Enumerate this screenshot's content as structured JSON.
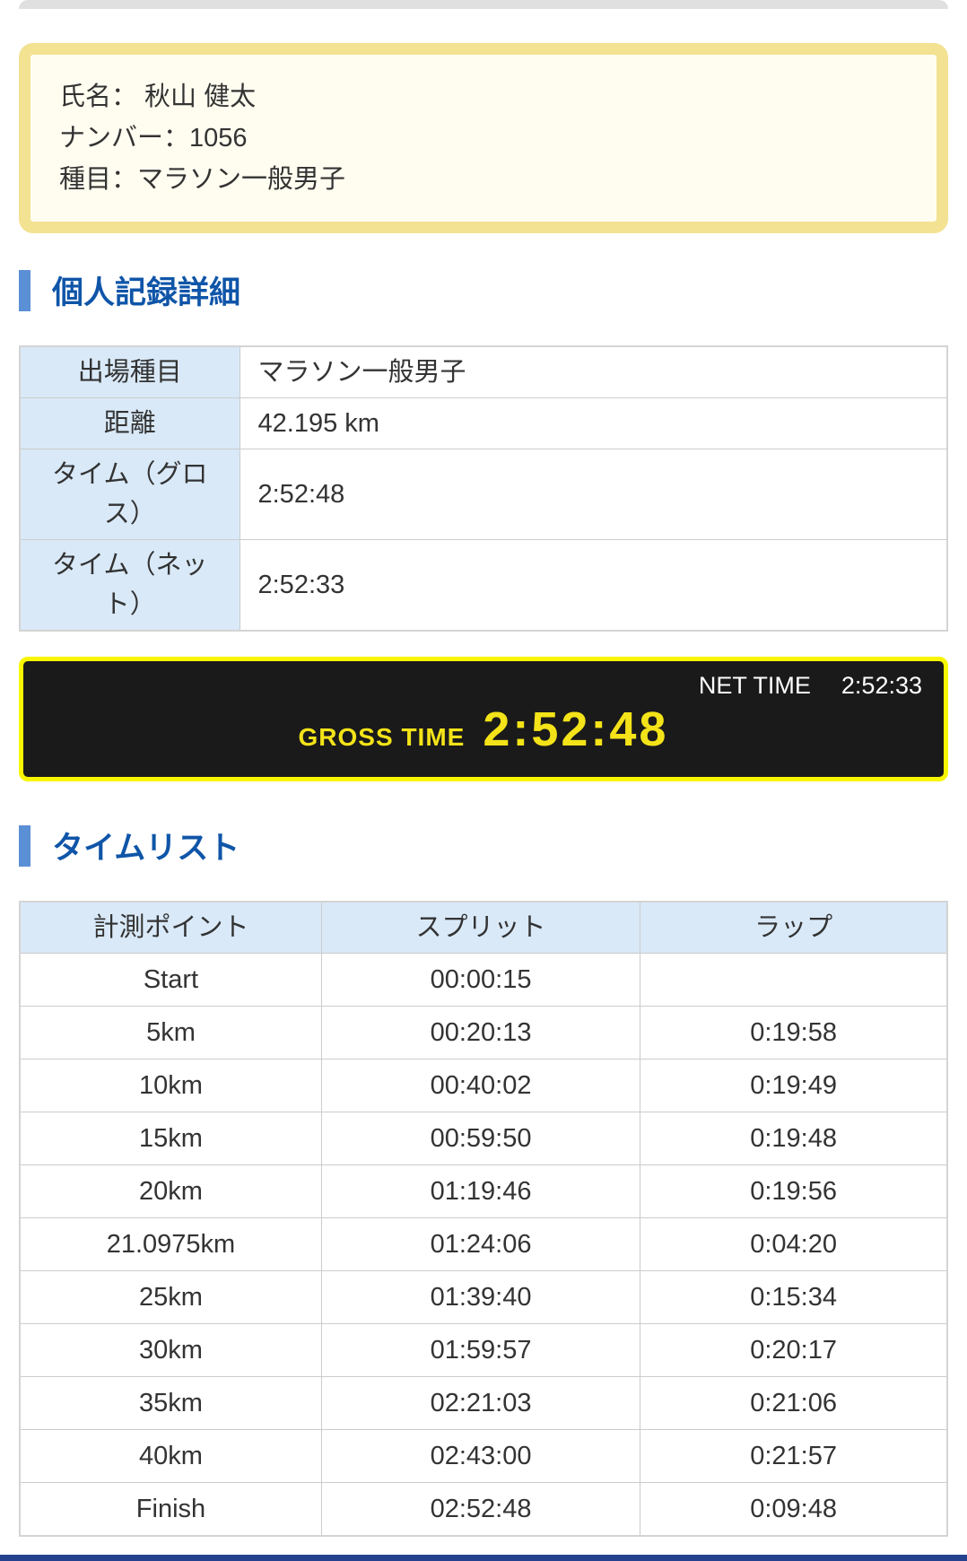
{
  "info": {
    "name_line": "氏名： 秋山 健太",
    "number_line": "ナンバー：1056",
    "event_line": "種目：マラソン一般男子"
  },
  "sections": {
    "record_detail": "個人記録詳細",
    "time_list": "タイムリスト"
  },
  "record_table": {
    "rows": [
      {
        "label": "出場種目",
        "value": "マラソン一般男子"
      },
      {
        "label": "距離",
        "value": "42.195 km"
      },
      {
        "label": "タイム（グロス）",
        "value": "2:52:48"
      },
      {
        "label": "タイム（ネット）",
        "value": "2:52:33"
      }
    ]
  },
  "time_banner": {
    "net_label": "NET TIME",
    "net_value": "2:52:33",
    "gross_label": "GROSS TIME",
    "gross_value": "2:52:48"
  },
  "time_table": {
    "headers": [
      "計測ポイント",
      "スプリット",
      "ラップ"
    ],
    "rows": [
      {
        "point": "Start",
        "split": "00:00:15",
        "lap": ""
      },
      {
        "point": "5km",
        "split": "00:20:13",
        "lap": "0:19:58"
      },
      {
        "point": "10km",
        "split": "00:40:02",
        "lap": "0:19:49"
      },
      {
        "point": "15km",
        "split": "00:59:50",
        "lap": "0:19:48"
      },
      {
        "point": "20km",
        "split": "01:19:46",
        "lap": "0:19:56"
      },
      {
        "point": "21.0975km",
        "split": "01:24:06",
        "lap": "0:04:20"
      },
      {
        "point": "25km",
        "split": "01:39:40",
        "lap": "0:15:34"
      },
      {
        "point": "30km",
        "split": "01:59:57",
        "lap": "0:20:17"
      },
      {
        "point": "35km",
        "split": "02:21:03",
        "lap": "0:21:06"
      },
      {
        "point": "40km",
        "split": "02:43:00",
        "lap": "0:21:57"
      },
      {
        "point": "Finish",
        "split": "02:52:48",
        "lap": "0:09:48"
      }
    ]
  },
  "colors": {
    "accent_blue": "#0f55a8",
    "section_bar_blue": "#5b8fd6",
    "table_header_bg": "#d9e9f8",
    "card_border_yellow": "#f2e292",
    "card_bg_cream": "#fffdf0",
    "banner_bg": "#1a1a1a",
    "banner_border_yellow": "#f8f500",
    "banner_text_yellow": "#f3e318",
    "bottom_bar_navy": "#24418f",
    "top_bar_grey": "#e0e0e0"
  }
}
